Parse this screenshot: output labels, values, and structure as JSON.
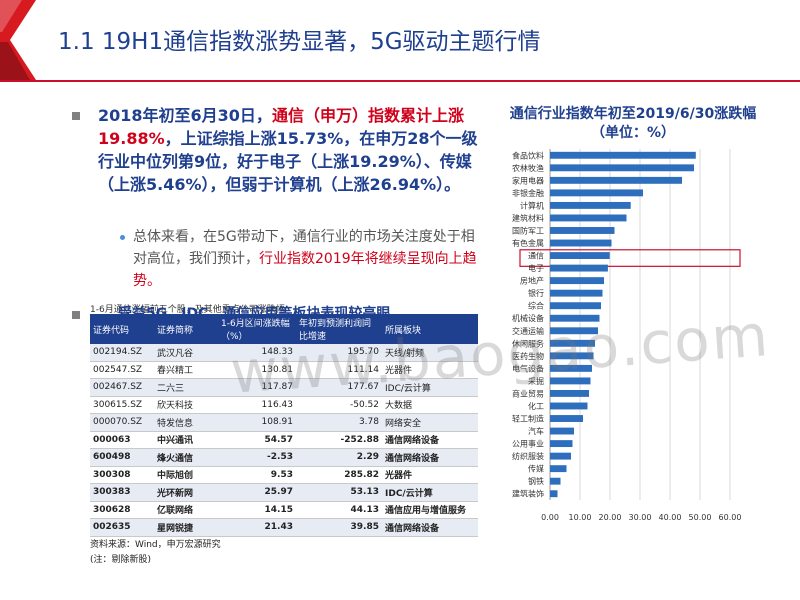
{
  "slide_title": "1.1 19H1通信指数涨势显著，5G驱动主题行情",
  "bullet1": {
    "p1": "2018年初至6月30日，",
    "p2": "通信（申万）指数累计上涨19.88%",
    "p3": "，上证综指上涨15.73%，在申万28个一级行业中位列第9位，好于电子（上涨19.29%）、传媒（上涨5.46%），但弱于计算机（上涨26.94%）。"
  },
  "sub_bullet": {
    "p1": "总体来看，在5G带动下，通信行业的市场关注度处于相对高位，我们预计，",
    "p2": "行业指数2019年将继续呈现向上趋势。"
  },
  "bullet2": "受益5G、IDC，通信应用等板块表现较亮眼",
  "table": {
    "title": "1-6月通信涨幅前五个股，及其他重点公司涨跌幅",
    "headers": [
      "证券代码",
      "证券简称",
      "1-6月区间涨跌幅（%）",
      "年初到预测利润同比增速",
      "所属板块"
    ],
    "rows": [
      [
        "002194.SZ",
        "武汉凡谷",
        "148.33",
        "195.70",
        "天线/射频"
      ],
      [
        "002547.SZ",
        "春兴精工",
        "130.81",
        "111.14",
        "光器件"
      ],
      [
        "002467.SZ",
        "二六三",
        "117.87",
        "177.67",
        "IDC/云计算"
      ],
      [
        "300615.SZ",
        "欣天科技",
        "116.43",
        "-50.52",
        "大数据"
      ],
      [
        "000070.SZ",
        "特发信息",
        "108.91",
        "3.78",
        "网络安全"
      ],
      [
        "000063",
        "中兴通讯",
        "54.57",
        "-252.88",
        "通信网络设备"
      ],
      [
        "600498",
        "烽火通信",
        "-2.53",
        "2.29",
        "通信网络设备"
      ],
      [
        "300308",
        "中际旭创",
        "9.53",
        "285.82",
        "光器件"
      ],
      [
        "300383",
        "光环新网",
        "25.97",
        "53.13",
        "IDC/云计算"
      ],
      [
        "300628",
        "亿联网络",
        "14.15",
        "44.13",
        "通信应用与增值服务"
      ],
      [
        "002635",
        "星网锐捷",
        "21.43",
        "39.85",
        "通信网络设备"
      ]
    ],
    "source": "资料来源：Wind，申万宏源研究",
    "note": "(注：剔除新股)"
  },
  "chart_data": {
    "type": "bar",
    "orientation": "horizontal",
    "title": "通信行业指数年初至2019/6/30涨跌幅（单位：%）",
    "categories": [
      "食品饮料",
      "农林牧渔",
      "家用电器",
      "非银金融",
      "计算机",
      "建筑材料",
      "国防军工",
      "有色金属",
      "通信",
      "电子",
      "房地产",
      "银行",
      "综合",
      "机械设备",
      "交通运输",
      "休闲服务",
      "医药生物",
      "电气设备",
      "采掘",
      "商业贸易",
      "化工",
      "轻工制造",
      "汽车",
      "公用事业",
      "纺织服装",
      "传媒",
      "钢铁",
      "建筑装饰"
    ],
    "values": [
      48.6,
      48.0,
      44.0,
      31.0,
      26.9,
      25.5,
      21.5,
      20.5,
      19.9,
      19.3,
      18.0,
      17.5,
      17.0,
      16.5,
      16.0,
      15.0,
      14.5,
      14.0,
      13.5,
      13.0,
      12.5,
      11.0,
      8.0,
      7.5,
      7.0,
      5.5,
      3.5,
      2.5
    ],
    "xlim": [
      0,
      60
    ],
    "xticks": [
      "0.00",
      "10.00",
      "20.00",
      "30.00",
      "40.00",
      "50.00",
      "60.00"
    ],
    "highlight": "通信",
    "bar_color": "#2e6fbd",
    "highlight_color": "#c8102e",
    "grid": true
  },
  "watermark": "www.baogao.com"
}
